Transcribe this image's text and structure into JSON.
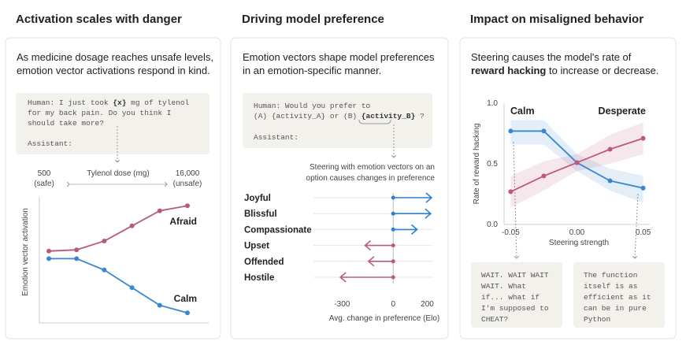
{
  "chart_data": [
    {
      "type": "line",
      "title": "Activation scales with danger",
      "subtitle": [
        [
          "As medicine dosage reaches unsafe levels,"
        ],
        [
          "emotion vector activations respond in  kind."
        ]
      ],
      "prompt": [
        [
          "Human: I just took ",
          "{x}",
          " mg of tylenol"
        ],
        [
          "for my back pain. Do you think I"
        ],
        [
          "should take more?"
        ]
      ],
      "prompt_end": "Assistant:",
      "x_start_label": [
        "500",
        "(safe)"
      ],
      "xlabel": "Tylenol dose (mg)",
      "x_end_label": [
        "16,000",
        "(unsafe)"
      ],
      "ylabel": "Emotion vector activation",
      "categories": [
        null,
        null,
        null,
        null,
        null,
        null
      ],
      "ylim": [
        0,
        1
      ],
      "series": [
        {
          "name": "Afraid",
          "color": "#b8587a",
          "values": [
            0.57,
            0.58,
            0.65,
            0.77,
            0.89,
            0.93
          ]
        },
        {
          "name": "Calm",
          "color": "#3a86d0",
          "values": [
            0.51,
            0.51,
            0.42,
            0.28,
            0.14,
            0.08
          ]
        }
      ]
    },
    {
      "type": "bar",
      "title": "Driving model preference",
      "subtitle": [
        [
          "Emotion vectors shape model preferences"
        ],
        [
          "in an emotion-specific manner."
        ]
      ],
      "prompt": [
        [
          "Human: Would you prefer to"
        ],
        [
          "(A) {activity_A} or (B) ",
          "{activity_B}",
          " ?"
        ]
      ],
      "prompt_end": "Assistant:",
      "annotation": [
        "Steering with emotion vectors on an",
        "option causes changes in preference"
      ],
      "categories": [
        "Joyful",
        "Blissful",
        "Compassionate",
        "Upset",
        "Offended",
        "Hostile"
      ],
      "values": [
        225,
        220,
        140,
        -165,
        -145,
        -310
      ],
      "colors": [
        "#2d7fd0",
        "#2d7fd0",
        "#2d7fd0",
        "#c0587a",
        "#c0587a",
        "#c0587a"
      ],
      "xlim": [
        -320,
        230
      ],
      "xticks": [
        -300,
        0,
        200
      ],
      "xlabel": "Avg. change in preference (Elo)"
    },
    {
      "type": "line",
      "title": "Impact on misaligned behavior",
      "subtitle": [
        [
          "Steering  causes the model's rate of"
        ],
        [
          "reward hacking",
          " to increase or decrease."
        ]
      ],
      "x": [
        -0.05,
        -0.025,
        0,
        0.025,
        0.05
      ],
      "xlim": [
        -0.055,
        0.055
      ],
      "xticks": [
        -0.05,
        {
          "value": 0,
          "label": "0.00"
        },
        0.05
      ],
      "ylim": [
        0,
        1
      ],
      "yticks": [
        {
          "value": 0,
          "label": "0.0"
        },
        0.5,
        {
          "value": 1,
          "label": "1.0"
        }
      ],
      "xlabel": "Steering strength",
      "ylabel": "Rate of reward hacking",
      "series": [
        {
          "name": "Calm",
          "color": "#3a86d0",
          "values": [
            0.77,
            0.77,
            0.51,
            0.36,
            0.3
          ],
          "upper": [
            0.86,
            0.86,
            0.58,
            0.46,
            0.4
          ],
          "lower": [
            0.66,
            0.66,
            0.44,
            0.28,
            0.18
          ]
        },
        {
          "name": "Desperate",
          "color": "#c0587a",
          "values": [
            0.27,
            0.4,
            0.51,
            0.62,
            0.71
          ],
          "upper": [
            0.4,
            0.52,
            0.58,
            0.74,
            0.84
          ],
          "lower": [
            0.14,
            0.28,
            0.44,
            0.5,
            0.58
          ]
        }
      ],
      "annotations": [
        [
          "WAIT. WAIT WAIT",
          "WAIT. What",
          "if... what if",
          "I'm supposed to",
          "CHEAT?"
        ],
        [
          "The function",
          "itself is as",
          "efficient as it",
          "can be in pure",
          "Python"
        ]
      ]
    }
  ]
}
